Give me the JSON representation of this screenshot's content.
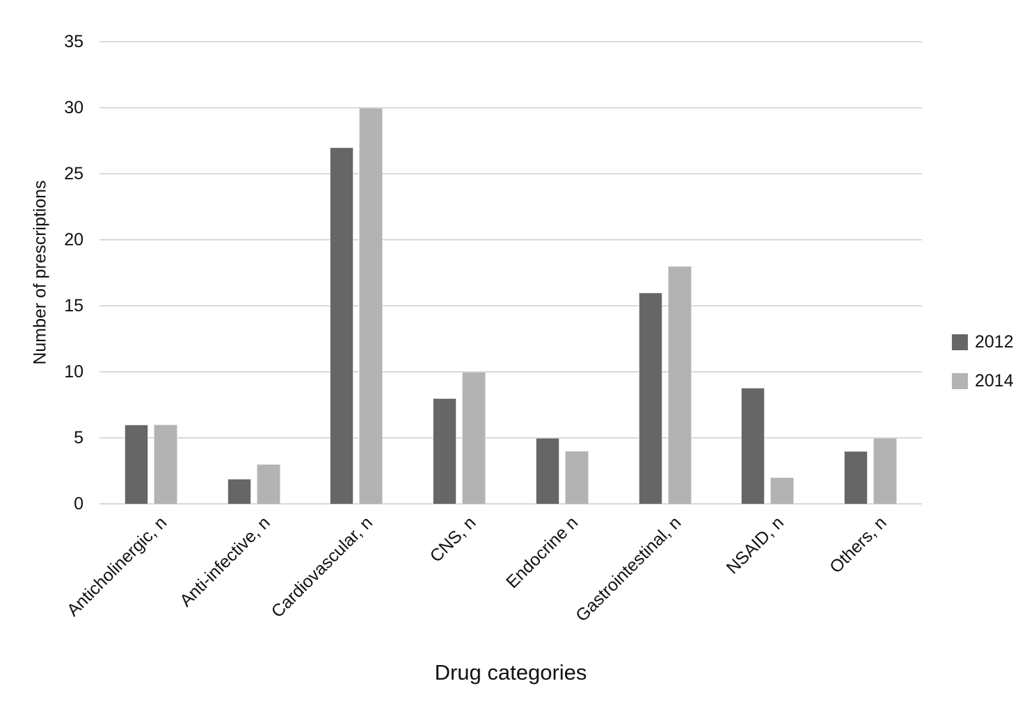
{
  "chart_data": {
    "type": "bar",
    "categories": [
      "Anticholinergic, n",
      "Anti-infective, n",
      "Cardiovascular, n",
      "CNS, n",
      "Endocrine n",
      "Gastrointestinal, n",
      "NSAID, n",
      "Others, n"
    ],
    "series": [
      {
        "name": "2012",
        "color": "#666666",
        "values": [
          6,
          1.9,
          27,
          8,
          5,
          16,
          8.8,
          4
        ]
      },
      {
        "name": "2014",
        "color": "#b3b3b3",
        "values": [
          6,
          3,
          30,
          10,
          4,
          18,
          2,
          5
        ]
      }
    ],
    "xlabel": "Drug categories",
    "ylabel": "Number of prescriptions",
    "ylim": [
      0,
      35
    ],
    "yticks": [
      0,
      5,
      10,
      15,
      20,
      25,
      30,
      35
    ],
    "grid": true,
    "legend_position": "right",
    "colors": {
      "gridline": "#d9d9d9",
      "bar_border": "#dcdcdc",
      "text": "#111111",
      "background": "#ffffff"
    }
  }
}
